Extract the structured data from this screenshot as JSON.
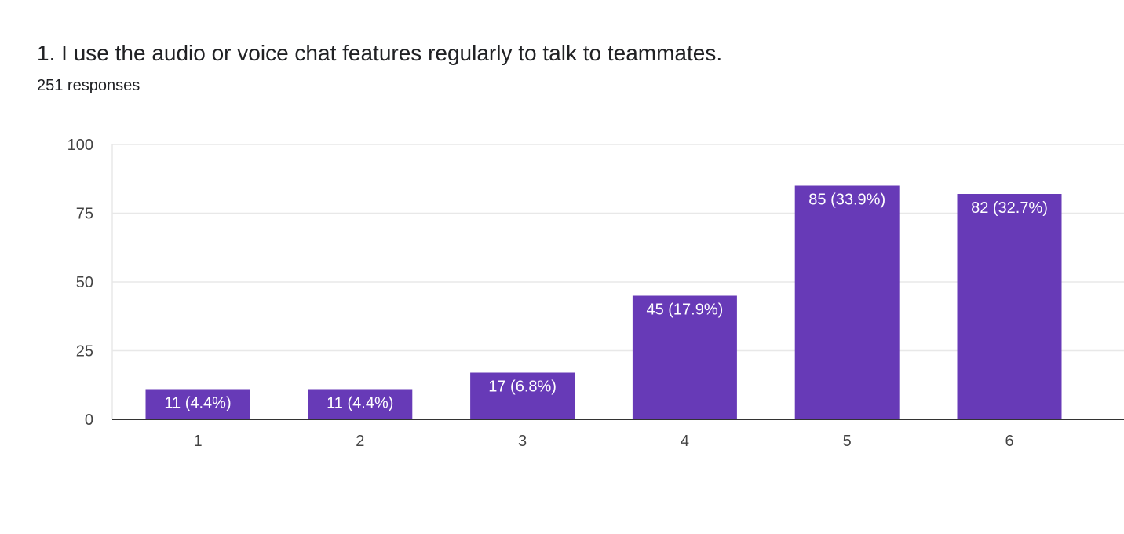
{
  "question": {
    "title": "1. I use the audio or voice chat features regularly to talk to teammates.",
    "responses": "251 responses"
  },
  "colors": {
    "bar": "#673ab7",
    "grid": "#e8e8e8",
    "axis": "#333333",
    "text": "#202124"
  },
  "chart_data": {
    "type": "bar",
    "title": "1. I use the audio or voice chat features regularly to talk to teammates.",
    "subtitle": "251 responses",
    "categories": [
      "1",
      "2",
      "3",
      "4",
      "5",
      "6"
    ],
    "values": [
      11,
      11,
      17,
      45,
      85,
      82
    ],
    "data_labels": [
      "11 (4.4%)",
      "11 (4.4%)",
      "17 (6.8%)",
      "45 (17.9%)",
      "85 (33.9%)",
      "82 (32.7%)"
    ],
    "xlabel": "",
    "ylabel": "",
    "ylim": [
      0,
      100
    ],
    "yticks": [
      0,
      25,
      50,
      75,
      100
    ],
    "grid": true,
    "legend": "none"
  }
}
